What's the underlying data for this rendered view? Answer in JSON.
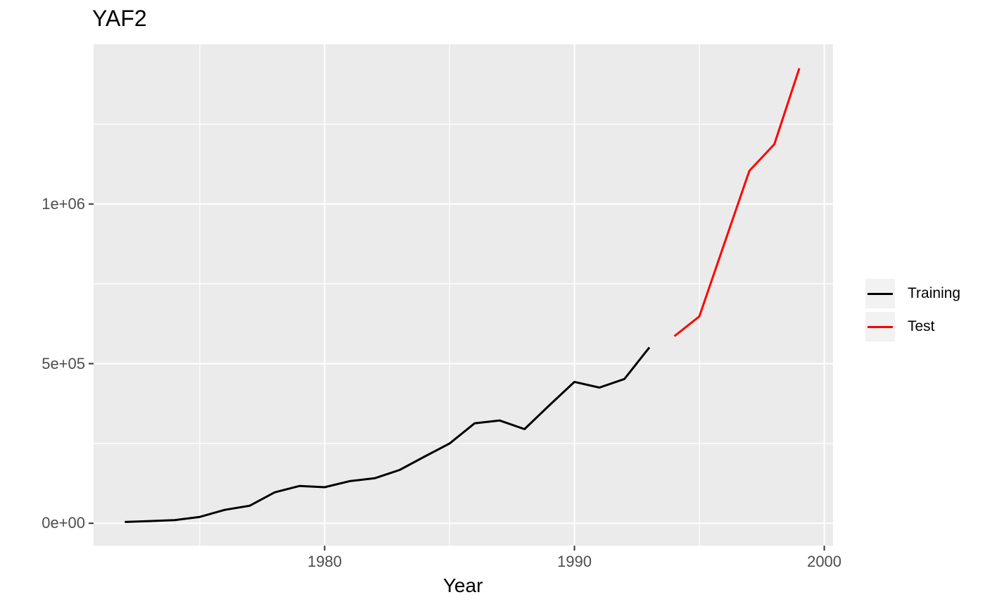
{
  "page": {
    "background_color": "#FFFFFF"
  },
  "chart_data": {
    "type": "line",
    "title": "YAF2",
    "xlabel": "Year",
    "ylabel": "",
    "xlim": [
      1970.75,
      2000.35
    ],
    "ylim": [
      -70000,
      1500000
    ],
    "x_major_ticks": [
      1980,
      1990,
      2000
    ],
    "x_tick_labels": [
      "1980",
      "1990",
      "2000"
    ],
    "x_minor_ticks": [
      1975,
      1985,
      1995
    ],
    "y_major_ticks": [
      0,
      500000,
      1000000
    ],
    "y_tick_labels": [
      "0e+00",
      "5e+05",
      "1e+06"
    ],
    "y_minor_ticks": [
      250000,
      750000,
      1250000
    ],
    "grid": true,
    "legend_position": "right",
    "panel_background": "#EBEBEB",
    "grid_color": "#FFFFFF",
    "axis_text_color": "#4D4D4D",
    "tick_mark_color": "#333333",
    "series": [
      {
        "name": "Training",
        "color": "#000000",
        "x": [
          1972,
          1973,
          1974,
          1975,
          1976,
          1977,
          1978,
          1979,
          1980,
          1981,
          1982,
          1983,
          1984,
          1985,
          1986,
          1987,
          1988,
          1989,
          1990,
          1991,
          1992,
          1993
        ],
        "values": [
          4000,
          7000,
          10000,
          20000,
          42000,
          55000,
          97000,
          117000,
          113000,
          132000,
          141000,
          167000,
          209000,
          250000,
          313000,
          322000,
          295000,
          370000,
          443000,
          425000,
          452000,
          551000
        ]
      },
      {
        "name": "Test",
        "color": "#FF0000",
        "x": [
          1994,
          1995,
          1996,
          1997,
          1998,
          1999
        ],
        "values": [
          586000,
          648000,
          876000,
          1104000,
          1187000,
          1425000
        ]
      }
    ]
  },
  "legend": {
    "key_background": "#F2F2F2",
    "items": [
      {
        "label": "Training",
        "color": "#000000"
      },
      {
        "label": "Test",
        "color": "#FF0000"
      }
    ]
  }
}
